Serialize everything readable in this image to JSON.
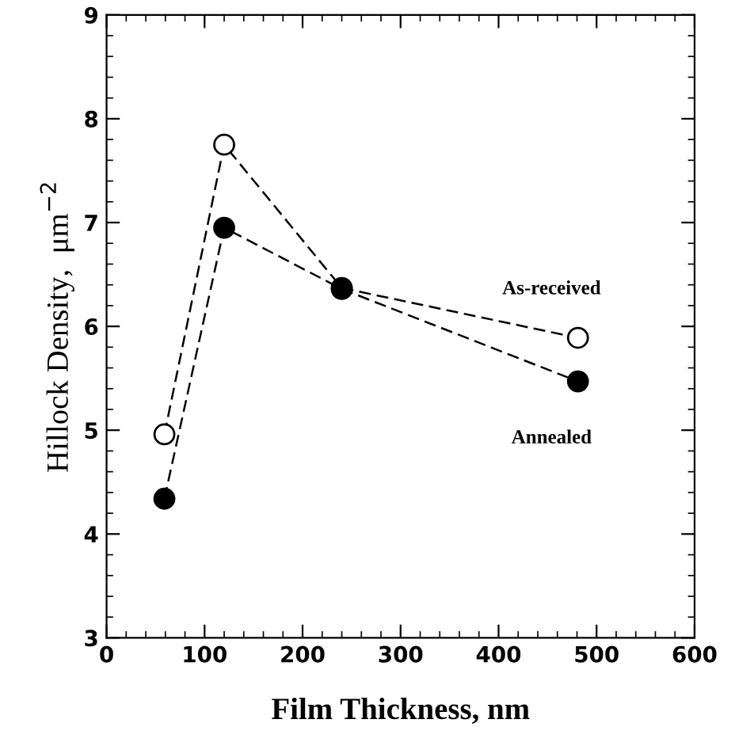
{
  "chart_data": {
    "type": "line",
    "xlabel": "Film Thickness, nm",
    "ylabel": "Hillock Density,  μm$^{−2}$",
    "xlim": [
      0,
      600
    ],
    "xticks": [
      0,
      100,
      200,
      300,
      400,
      500,
      600
    ],
    "ylim": [
      3,
      9
    ],
    "yticks": [
      3,
      4,
      5,
      6,
      7,
      8,
      9
    ],
    "grid": false,
    "legend": false,
    "marker": "circle",
    "line_style": "dashed",
    "series": [
      {
        "name": "As-received",
        "color": "#ffffff",
        "x": [
          59,
          120,
          240,
          481
        ],
        "values": [
          4.96,
          7.75,
          6.37,
          5.89
        ]
      },
      {
        "name": "Annealed",
        "color": "#000000",
        "x": [
          59,
          120,
          240,
          481
        ],
        "values": [
          4.34,
          6.95,
          6.36,
          5.47
        ]
      }
    ]
  }
}
